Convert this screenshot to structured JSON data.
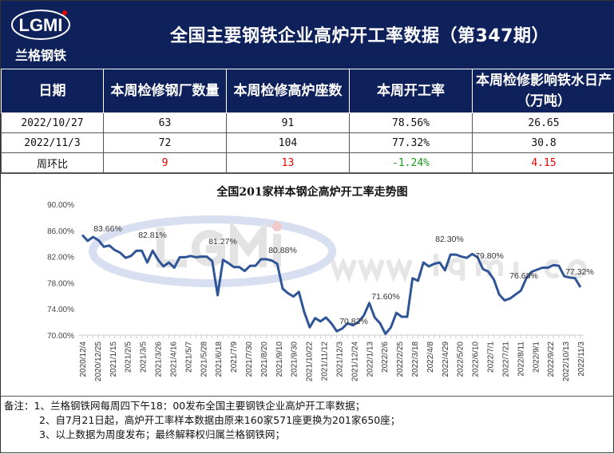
{
  "header": {
    "title": "全国主要钢铁企业高炉开工率数据（第347期）",
    "logo_text": "LGMI",
    "logo_subtitle": "兰格钢铁"
  },
  "table": {
    "columns": [
      "日期",
      "本周检修钢厂数量",
      "本周检修高炉座数",
      "本周开工率",
      "本周检修影响铁水日产（万吨）"
    ],
    "rows": [
      [
        "2022/10/27",
        "63",
        "91",
        "78.56%",
        "26.65"
      ],
      [
        "2022/11/3",
        "72",
        "104",
        "77.32%",
        "30.8"
      ],
      [
        "周环比",
        "9",
        "13",
        "-1.24%",
        "4.15"
      ]
    ],
    "change_colors": [
      "#e00000",
      "#e00000",
      "#1a9a1a",
      "#e00000"
    ]
  },
  "chart_data": {
    "type": "line",
    "title": "全国201家样本钢企高炉开工率走势图",
    "watermark": "www.lgmi.com",
    "ylim": [
      70,
      90
    ],
    "yticks": [
      "90.00%",
      "86.00%",
      "82.00%",
      "78.00%",
      "74.00%",
      "70.00%"
    ],
    "xticks": [
      "2020/12/4",
      "2020/12/25",
      "2021/1/15",
      "2021/2/5",
      "2021/3/5",
      "2021/3/26",
      "2021/4/16",
      "2021/5/7",
      "2021/5/28",
      "2021/6/18",
      "2021/7/9",
      "2021/7/30",
      "2021/8/20",
      "2021/9/10",
      "2021/9/30",
      "2021/10/22",
      "2021/11/12",
      "2021/12/3",
      "2021/12/24",
      "2022/1/13",
      "2022/2/6",
      "2022/2/25",
      "2022/3/18",
      "2022/4/8",
      "2022/4/29",
      "2022/5/20",
      "2022/6/10",
      "2022/7/1",
      "2022/7/21",
      "2022/8/11",
      "2022/9/1",
      "2022/9/22",
      "2022/10/13",
      "2022/11/3"
    ],
    "line_color": "#2f5597",
    "values": [
      85.3,
      84.4,
      85.0,
      84.5,
      83.5,
      83.7,
      83.0,
      82.6,
      81.8,
      82.1,
      82.9,
      82.9,
      81.1,
      82.9,
      81.5,
      80.5,
      81.1,
      80.3,
      81.9,
      81.9,
      82.1,
      81.9,
      82.0,
      82.0,
      81.3,
      76.1,
      81.5,
      81.0,
      80.4,
      80.4,
      79.8,
      80.6,
      80.6,
      81.6,
      81.6,
      81.4,
      80.9,
      77.1,
      76.4,
      75.9,
      76.6,
      73.5,
      71.2,
      72.6,
      72.1,
      72.7,
      71.8,
      70.6,
      71.0,
      71.8,
      71.5,
      72.0,
      73.0,
      74.9,
      72.7,
      71.8,
      70.2,
      71.2,
      73.4,
      72.8,
      72.8,
      78.7,
      78.3,
      81.1,
      80.5,
      80.9,
      81.1,
      79.9,
      82.3,
      82.3,
      82.0,
      81.8,
      82.4,
      81.9,
      80.1,
      79.7,
      78.5,
      76.2,
      75.3,
      75.6,
      76.2,
      76.8,
      78.7,
      79.7,
      80.0,
      80.3,
      80.3,
      80.7,
      80.6,
      79.0,
      78.8,
      78.7,
      77.32
    ],
    "annotations": [
      "83.66%",
      "82.81%",
      "81.27%",
      "80.88%",
      "70.82%",
      "71.60%",
      "82.30%",
      "79.80%",
      "76.68%",
      "77.32%"
    ],
    "grid": false
  },
  "notes": [
    "备注：1、兰格钢铁网每周四下午18：00发布全国主要钢铁企业高炉开工率数据；",
    "2、自7月21日起，高炉开工率样本数据由原来160家571座更换为201家650座；",
    "3、以上数据为周度发布；最终解释权归属兰格钢铁网；"
  ]
}
